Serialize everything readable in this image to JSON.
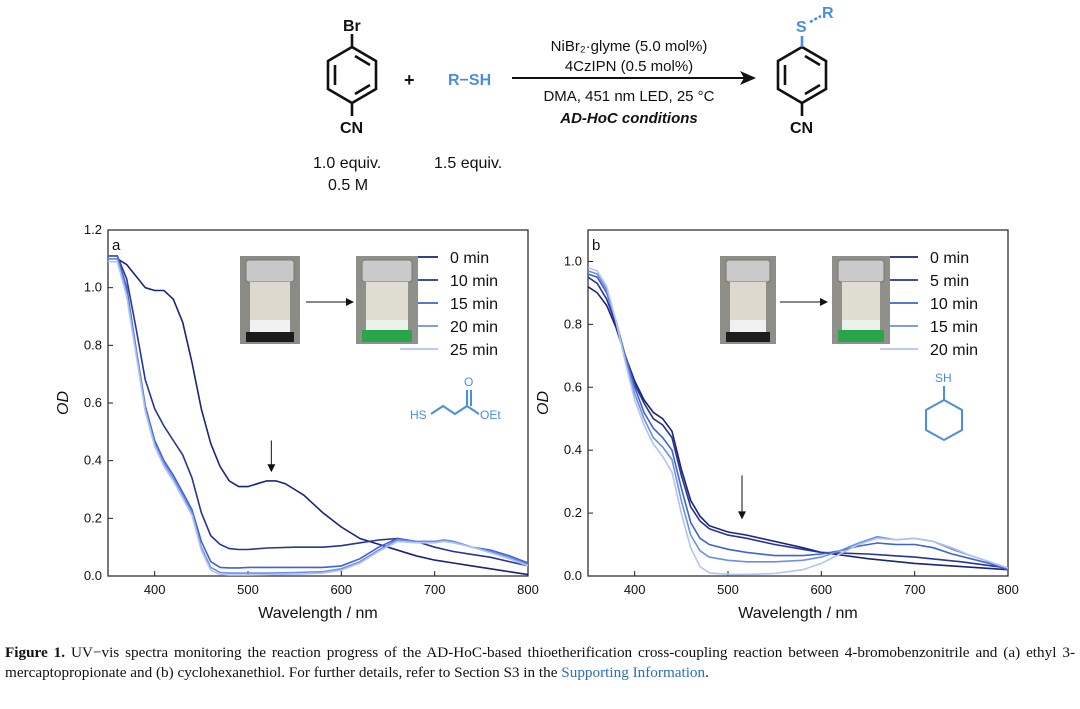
{
  "scheme": {
    "reactant1": {
      "substituent_top": "Br",
      "substituent_bottom": "CN",
      "equiv": "1.0 equiv.",
      "conc": "0.5 M"
    },
    "plus": "+",
    "reactant2": {
      "label": "R−SH",
      "equiv": "1.5 equiv."
    },
    "arrow_above": [
      "NiBr₂·glyme (5.0 mol%)",
      "4CzIPN (0.5 mol%)"
    ],
    "arrow_below": [
      "DMA, 451 nm LED, 25 °C"
    ],
    "conditions_name": "AD-HoC conditions",
    "product": {
      "substituent_top": "S",
      "substituent_r": "R",
      "substituent_bottom": "CN"
    },
    "colors": {
      "blue": "#4a8fdf",
      "black": "#111111"
    }
  },
  "chart_data": [
    {
      "type": "line",
      "panel_label": "a",
      "xlabel": "Wavelength / nm",
      "ylabel": "OD",
      "xlim": [
        350,
        800
      ],
      "ylim": [
        0,
        1.2
      ],
      "xticks": [
        400,
        500,
        600,
        700,
        800
      ],
      "yticks": [
        0.0,
        0.2,
        0.4,
        0.6,
        0.8,
        1.0,
        1.2
      ],
      "legend_position": "top-right",
      "annotation": "arrow at 525 nm pointing down",
      "inset": "vial photos: before (colorless) → after (green)",
      "structure_labels": [
        "HS",
        "O",
        "OEt"
      ],
      "series": [
        {
          "name": "0 min",
          "color": "#1a237e",
          "x": [
            350,
            360,
            370,
            380,
            390,
            400,
            410,
            420,
            430,
            440,
            450,
            460,
            470,
            480,
            490,
            500,
            510,
            520,
            530,
            540,
            550,
            560,
            570,
            580,
            600,
            620,
            650,
            680,
            700,
            720,
            740,
            760,
            780,
            800
          ],
          "y": [
            1.1,
            1.1,
            1.08,
            1.04,
            1.0,
            0.99,
            0.99,
            0.96,
            0.88,
            0.74,
            0.58,
            0.46,
            0.38,
            0.33,
            0.31,
            0.31,
            0.32,
            0.33,
            0.33,
            0.32,
            0.3,
            0.28,
            0.25,
            0.22,
            0.17,
            0.13,
            0.1,
            0.07,
            0.055,
            0.045,
            0.035,
            0.025,
            0.015,
            0.005
          ]
        },
        {
          "name": "10 min",
          "color": "#283593",
          "x": [
            350,
            360,
            370,
            380,
            390,
            400,
            410,
            420,
            430,
            440,
            450,
            460,
            470,
            480,
            490,
            500,
            520,
            550,
            580,
            600,
            620,
            640,
            660,
            680,
            700,
            720,
            740,
            760,
            780,
            800
          ],
          "y": [
            1.11,
            1.11,
            1.03,
            0.86,
            0.68,
            0.58,
            0.52,
            0.47,
            0.42,
            0.34,
            0.22,
            0.14,
            0.11,
            0.095,
            0.092,
            0.092,
            0.097,
            0.1,
            0.1,
            0.105,
            0.115,
            0.125,
            0.13,
            0.12,
            0.1,
            0.085,
            0.075,
            0.065,
            0.05,
            0.035
          ]
        },
        {
          "name": "15 min",
          "color": "#3f63cf",
          "x": [
            350,
            360,
            370,
            380,
            390,
            400,
            410,
            420,
            430,
            440,
            450,
            460,
            470,
            480,
            490,
            500,
            520,
            550,
            580,
            600,
            620,
            640,
            660,
            680,
            700,
            710,
            720,
            740,
            760,
            780,
            800
          ],
          "y": [
            1.11,
            1.11,
            1.0,
            0.79,
            0.59,
            0.47,
            0.4,
            0.35,
            0.29,
            0.23,
            0.12,
            0.05,
            0.03,
            0.028,
            0.028,
            0.03,
            0.03,
            0.03,
            0.03,
            0.035,
            0.06,
            0.1,
            0.13,
            0.12,
            0.12,
            0.125,
            0.12,
            0.1,
            0.09,
            0.07,
            0.045
          ]
        },
        {
          "name": "20 min",
          "color": "#6f8fe6",
          "x": [
            350,
            360,
            370,
            380,
            390,
            400,
            410,
            420,
            430,
            440,
            450,
            460,
            470,
            480,
            490,
            500,
            520,
            550,
            580,
            600,
            620,
            640,
            660,
            680,
            700,
            710,
            720,
            740,
            760,
            780,
            800
          ],
          "y": [
            1.1,
            1.1,
            0.98,
            0.78,
            0.58,
            0.46,
            0.39,
            0.34,
            0.28,
            0.22,
            0.1,
            0.03,
            0.012,
            0.01,
            0.01,
            0.01,
            0.01,
            0.012,
            0.015,
            0.025,
            0.05,
            0.09,
            0.125,
            0.12,
            0.12,
            0.125,
            0.12,
            0.1,
            0.085,
            0.065,
            0.04
          ]
        },
        {
          "name": "25 min",
          "color": "#b3c3f2",
          "x": [
            350,
            360,
            370,
            380,
            390,
            400,
            410,
            420,
            430,
            440,
            450,
            460,
            470,
            480,
            490,
            500,
            520,
            550,
            580,
            600,
            620,
            640,
            660,
            680,
            700,
            710,
            720,
            740,
            760,
            780,
            800
          ],
          "y": [
            1.09,
            1.09,
            0.97,
            0.77,
            0.57,
            0.45,
            0.38,
            0.33,
            0.27,
            0.21,
            0.09,
            0.02,
            0.005,
            0.003,
            0.003,
            0.003,
            0.004,
            0.006,
            0.01,
            0.02,
            0.045,
            0.085,
            0.12,
            0.115,
            0.115,
            0.12,
            0.115,
            0.1,
            0.08,
            0.06,
            0.035
          ]
        }
      ]
    },
    {
      "type": "line",
      "panel_label": "b",
      "xlabel": "Wavelength / nm",
      "ylabel": "OD",
      "xlim": [
        350,
        800
      ],
      "ylim": [
        0,
        1.1
      ],
      "xticks": [
        400,
        500,
        600,
        700,
        800
      ],
      "yticks": [
        0.0,
        0.2,
        0.4,
        0.6,
        0.8,
        1.0
      ],
      "legend_position": "top-right",
      "annotation": "arrow at 515 nm pointing down",
      "inset": "vial photos: before (colorless) → after (green)",
      "structure_labels": [
        "SH"
      ],
      "series": [
        {
          "name": "0 min",
          "color": "#1a237e",
          "x": [
            350,
            360,
            370,
            380,
            390,
            400,
            410,
            420,
            430,
            440,
            450,
            460,
            470,
            480,
            500,
            520,
            550,
            580,
            600,
            650,
            700,
            750,
            800
          ],
          "y": [
            0.92,
            0.9,
            0.86,
            0.79,
            0.7,
            0.62,
            0.56,
            0.52,
            0.5,
            0.46,
            0.34,
            0.24,
            0.19,
            0.16,
            0.14,
            0.13,
            0.11,
            0.09,
            0.075,
            0.055,
            0.04,
            0.03,
            0.02
          ]
        },
        {
          "name": "5 min",
          "color": "#283593",
          "x": [
            350,
            360,
            370,
            380,
            390,
            400,
            410,
            420,
            430,
            440,
            450,
            460,
            470,
            480,
            500,
            520,
            550,
            580,
            600,
            650,
            700,
            750,
            800
          ],
          "y": [
            0.95,
            0.93,
            0.88,
            0.8,
            0.7,
            0.61,
            0.55,
            0.5,
            0.48,
            0.44,
            0.32,
            0.22,
            0.175,
            0.15,
            0.13,
            0.12,
            0.1,
            0.085,
            0.075,
            0.07,
            0.06,
            0.045,
            0.025
          ]
        },
        {
          "name": "10 min",
          "color": "#3f63cf",
          "x": [
            350,
            360,
            370,
            380,
            390,
            400,
            410,
            420,
            430,
            440,
            450,
            460,
            470,
            480,
            500,
            520,
            550,
            580,
            600,
            620,
            640,
            660,
            680,
            700,
            720,
            740,
            760,
            780,
            800
          ],
          "y": [
            0.96,
            0.95,
            0.9,
            0.81,
            0.7,
            0.6,
            0.52,
            0.47,
            0.44,
            0.4,
            0.28,
            0.17,
            0.12,
            0.1,
            0.085,
            0.075,
            0.065,
            0.065,
            0.07,
            0.08,
            0.095,
            0.105,
            0.1,
            0.1,
            0.09,
            0.07,
            0.055,
            0.04,
            0.02
          ]
        },
        {
          "name": "15 min",
          "color": "#6f8fe6",
          "x": [
            350,
            360,
            370,
            380,
            390,
            400,
            410,
            420,
            430,
            440,
            450,
            460,
            470,
            480,
            500,
            520,
            550,
            580,
            600,
            620,
            640,
            660,
            680,
            700,
            720,
            740,
            760,
            780,
            800
          ],
          "y": [
            0.97,
            0.96,
            0.91,
            0.81,
            0.69,
            0.58,
            0.5,
            0.44,
            0.41,
            0.37,
            0.24,
            0.13,
            0.08,
            0.06,
            0.05,
            0.045,
            0.045,
            0.05,
            0.06,
            0.08,
            0.105,
            0.125,
            0.115,
            0.12,
            0.11,
            0.085,
            0.065,
            0.045,
            0.025
          ]
        },
        {
          "name": "20 min",
          "color": "#b3c3f2",
          "x": [
            350,
            360,
            370,
            380,
            390,
            400,
            410,
            420,
            430,
            440,
            450,
            460,
            470,
            480,
            500,
            520,
            550,
            580,
            600,
            620,
            640,
            660,
            680,
            700,
            720,
            740,
            760,
            780,
            800
          ],
          "y": [
            0.98,
            0.97,
            0.92,
            0.81,
            0.68,
            0.56,
            0.48,
            0.42,
            0.38,
            0.33,
            0.2,
            0.09,
            0.03,
            0.01,
            0.005,
            0.005,
            0.008,
            0.02,
            0.04,
            0.07,
            0.1,
            0.12,
            0.115,
            0.12,
            0.11,
            0.09,
            0.065,
            0.045,
            0.025
          ]
        }
      ]
    }
  ],
  "caption": {
    "figure_label": "Figure 1.",
    "text": "UV−vis spectra monitoring the reaction progress of the AD-HoC-based thioetherification cross-coupling reaction between 4-bromobenzonitrile and (a) ethyl 3-mercaptopropionate and (b) cyclohexanethiol. For further details, refer to Section S3 in the",
    "link": "Supporting Information",
    "end": "."
  }
}
